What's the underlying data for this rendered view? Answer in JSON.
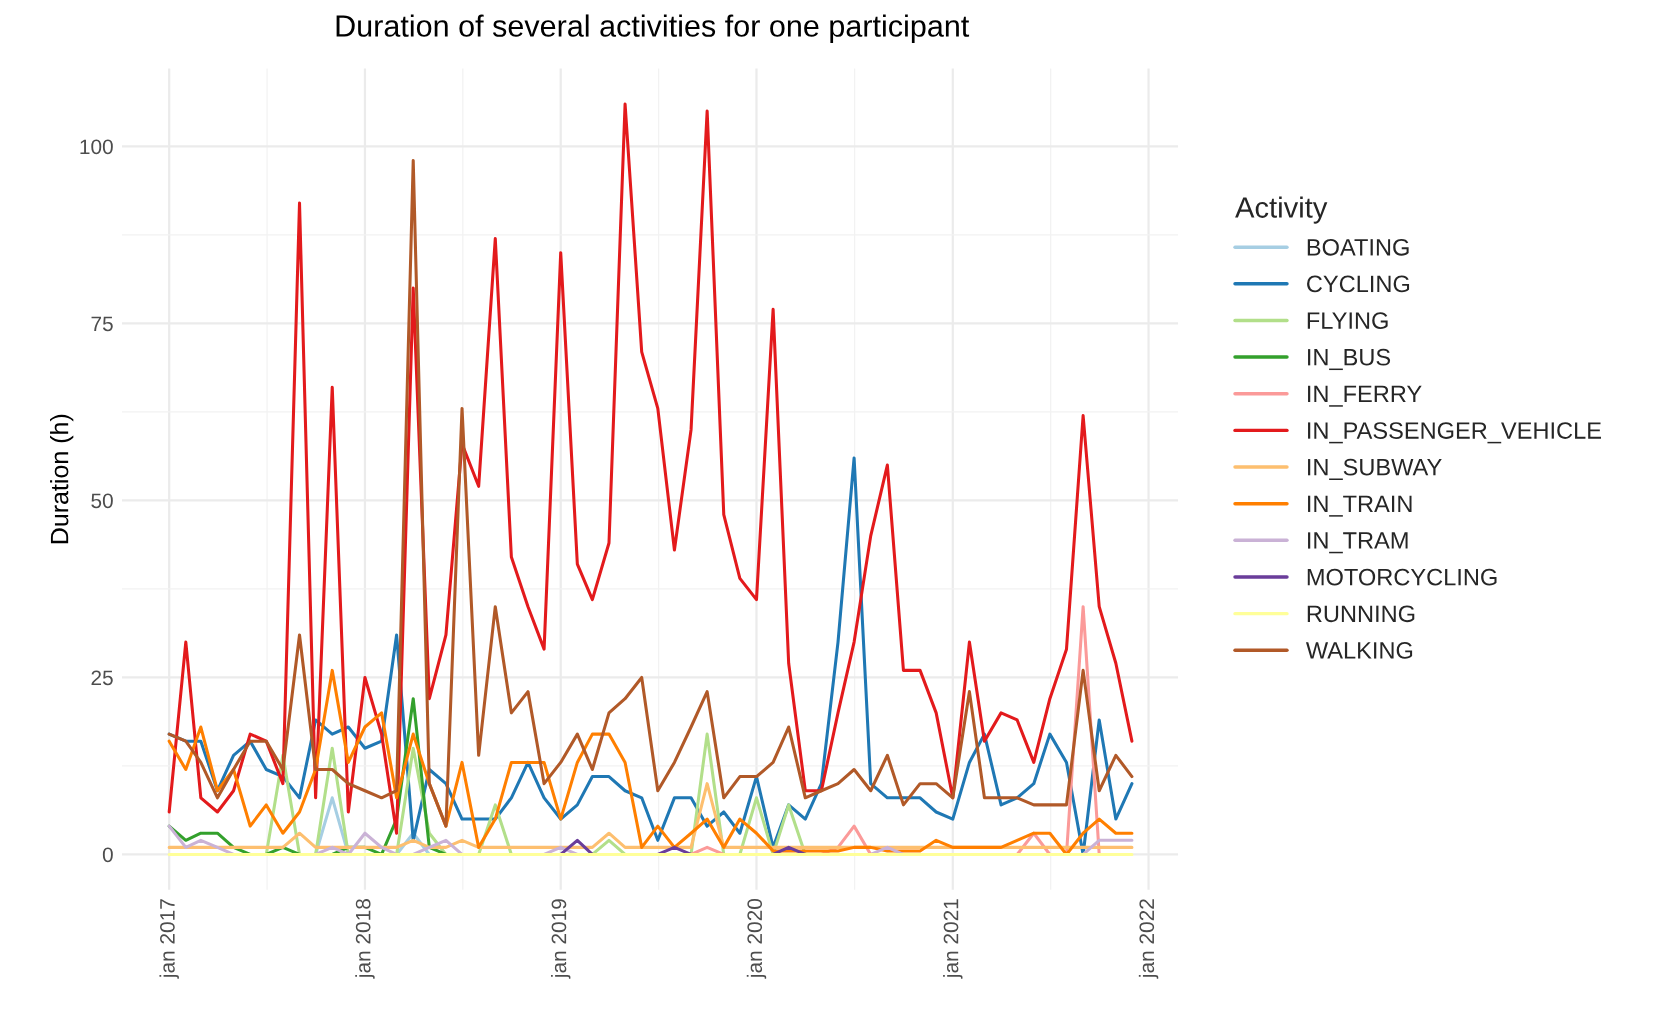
{
  "chart_data": {
    "type": "line",
    "title": "Duration of several activities for one participant",
    "ylabel": "Duration (h)",
    "legend_title": "Activity",
    "legend": "right",
    "grid": true,
    "marker": "none",
    "line_style": "solid",
    "x": [
      "2017-01",
      "2017-02",
      "2017-03",
      "2017-04",
      "2017-05",
      "2017-06",
      "2017-07",
      "2017-08",
      "2017-09",
      "2017-10",
      "2017-11",
      "2017-12",
      "2018-01",
      "2018-02",
      "2018-03",
      "2018-04",
      "2018-05",
      "2018-06",
      "2018-07",
      "2018-08",
      "2018-09",
      "2018-10",
      "2018-11",
      "2018-12",
      "2019-01",
      "2019-02",
      "2019-03",
      "2019-04",
      "2019-05",
      "2019-06",
      "2019-07",
      "2019-08",
      "2019-09",
      "2019-10",
      "2019-11",
      "2019-12",
      "2020-01",
      "2020-02",
      "2020-03",
      "2020-04",
      "2020-05",
      "2020-06",
      "2020-07",
      "2020-08",
      "2020-09",
      "2020-10",
      "2020-11",
      "2020-12",
      "2021-01",
      "2021-02",
      "2021-03",
      "2021-04",
      "2021-05",
      "2021-06",
      "2021-07",
      "2021-08",
      "2021-09",
      "2021-10",
      "2021-11",
      "2021-12"
    ],
    "xlim": [
      "2016-10-05",
      "2022-02-25"
    ],
    "xticks": [
      {
        "value": "2017-01-01",
        "label": "jan 2017"
      },
      {
        "value": "2018-01-01",
        "label": "jan 2018"
      },
      {
        "value": "2019-01-01",
        "label": "jan 2019"
      },
      {
        "value": "2020-01-01",
        "label": "jan 2020"
      },
      {
        "value": "2021-01-01",
        "label": "jan 2021"
      },
      {
        "value": "2022-01-01",
        "label": "jan 2022"
      }
    ],
    "ylim": [
      -5,
      111
    ],
    "yticks": [
      0,
      25,
      50,
      75,
      100
    ],
    "series": [
      {
        "name": "BOATING",
        "color": "#a6cee3",
        "values": [
          null,
          null,
          null,
          null,
          null,
          null,
          null,
          null,
          null,
          0,
          8,
          0,
          null,
          null,
          0,
          3,
          0,
          null,
          null,
          null,
          null,
          null,
          null,
          null,
          null,
          null,
          null,
          null,
          null,
          null,
          null,
          null,
          null,
          null,
          null,
          null,
          null,
          null,
          null,
          null,
          null,
          null,
          null,
          null,
          null,
          null,
          null,
          null,
          null,
          null,
          null,
          null,
          null,
          null,
          null,
          null,
          null,
          null,
          null,
          null
        ]
      },
      {
        "name": "CYCLING",
        "color": "#1f78b4",
        "values": [
          17,
          16,
          16,
          9,
          14,
          16,
          12,
          11,
          8,
          19,
          17,
          18,
          15,
          16,
          31,
          2,
          12,
          10,
          5,
          5,
          5,
          8,
          13,
          8,
          5,
          7,
          11,
          11,
          9,
          8,
          2,
          8,
          8,
          4,
          6,
          3,
          11,
          1,
          7,
          5,
          10,
          30,
          56,
          10,
          8,
          8,
          8,
          6,
          5,
          13,
          17,
          7,
          8,
          10,
          17,
          13,
          0,
          19,
          5,
          10
        ]
      },
      {
        "name": "FLYING",
        "color": "#b2df8a",
        "values": [
          null,
          null,
          null,
          null,
          null,
          null,
          0,
          14,
          0,
          0,
          15,
          0,
          null,
          null,
          0,
          15,
          3,
          0,
          null,
          0,
          7,
          0,
          null,
          null,
          null,
          null,
          0,
          2,
          0,
          null,
          null,
          null,
          0,
          17,
          0,
          0,
          8,
          0,
          7,
          0,
          null,
          null,
          null,
          null,
          null,
          null,
          null,
          null,
          null,
          null,
          null,
          null,
          null,
          null,
          null,
          null,
          null,
          null,
          null,
          null
        ]
      },
      {
        "name": "IN_BUS",
        "color": "#33a02c",
        "values": [
          4,
          2,
          3,
          3,
          1,
          0,
          0,
          1,
          0,
          null,
          0,
          1,
          1,
          0,
          5,
          22,
          1,
          0,
          null,
          null,
          null,
          null,
          null,
          null,
          null,
          null,
          null,
          null,
          null,
          null,
          null,
          null,
          null,
          null,
          null,
          null,
          null,
          null,
          null,
          null,
          null,
          null,
          null,
          null,
          null,
          null,
          null,
          null,
          null,
          null,
          null,
          null,
          null,
          null,
          null,
          null,
          null,
          null,
          null,
          null
        ]
      },
      {
        "name": "IN_FERRY",
        "color": "#fb9a99",
        "values": [
          null,
          null,
          null,
          null,
          null,
          null,
          null,
          null,
          null,
          null,
          null,
          null,
          null,
          null,
          null,
          null,
          null,
          null,
          null,
          null,
          null,
          null,
          null,
          null,
          null,
          null,
          null,
          null,
          null,
          null,
          null,
          null,
          0,
          1,
          0,
          null,
          null,
          null,
          null,
          null,
          0,
          1,
          4,
          0,
          null,
          null,
          null,
          null,
          null,
          null,
          null,
          null,
          0,
          3,
          0,
          0,
          35,
          0,
          null,
          null
        ]
      },
      {
        "name": "IN_PASSENGER_VEHICLE",
        "color": "#e31a1c",
        "values": [
          6,
          30,
          8,
          6,
          9,
          17,
          16,
          10,
          92,
          8,
          66,
          6,
          25,
          17,
          3,
          80,
          22,
          31,
          58,
          52,
          87,
          42,
          35,
          29,
          85,
          41,
          36,
          44,
          106,
          71,
          63,
          43,
          60,
          105,
          48,
          39,
          36,
          77,
          27,
          9,
          9,
          20,
          30,
          45,
          55,
          26,
          26,
          20,
          8,
          30,
          16,
          20,
          19,
          13,
          22,
          29,
          62,
          35,
          27,
          16
        ]
      },
      {
        "name": "IN_SUBWAY",
        "color": "#fdbf6f",
        "values": [
          1,
          1,
          1,
          1,
          1,
          1,
          1,
          1,
          3,
          1,
          1,
          1,
          1,
          1,
          1,
          2,
          1,
          1,
          2,
          1,
          1,
          1,
          1,
          1,
          1,
          1,
          1,
          3,
          1,
          1,
          1,
          1,
          1,
          10,
          1,
          1,
          1,
          1,
          1,
          1,
          1,
          1,
          1,
          1,
          1,
          1,
          1,
          1,
          1,
          1,
          1,
          1,
          1,
          1,
          1,
          1,
          1,
          1,
          1,
          1
        ]
      },
      {
        "name": "IN_TRAIN",
        "color": "#ff7f00",
        "values": [
          16,
          12,
          18,
          9,
          12,
          4,
          7,
          3,
          6,
          12,
          26,
          13,
          18,
          20,
          8,
          17,
          10,
          4,
          13,
          1,
          5,
          13,
          13,
          13,
          5,
          13,
          17,
          17,
          13,
          1,
          4,
          1,
          3,
          5,
          1,
          5,
          3,
          0.5,
          0.5,
          0.5,
          0.5,
          0.5,
          1,
          1,
          0.5,
          0.5,
          0.5,
          2,
          1,
          1,
          1,
          1,
          2,
          3,
          3,
          0,
          3,
          5,
          3,
          3
        ]
      },
      {
        "name": "IN_TRAM",
        "color": "#cab2d6",
        "values": [
          4,
          1,
          2,
          1,
          0,
          null,
          null,
          null,
          null,
          0,
          1,
          0,
          3,
          1,
          0,
          0,
          1,
          2,
          0,
          null,
          null,
          null,
          null,
          0,
          1,
          0,
          null,
          null,
          null,
          null,
          null,
          null,
          null,
          null,
          null,
          null,
          null,
          null,
          null,
          null,
          null,
          null,
          null,
          0,
          1,
          0,
          null,
          null,
          null,
          null,
          null,
          null,
          null,
          null,
          null,
          null,
          0,
          2,
          2,
          2
        ]
      },
      {
        "name": "MOTORCYCLING",
        "color": "#6a3d9a",
        "values": [
          null,
          null,
          null,
          null,
          null,
          null,
          null,
          null,
          null,
          null,
          null,
          null,
          null,
          null,
          null,
          null,
          null,
          null,
          null,
          null,
          null,
          null,
          null,
          null,
          0,
          2,
          0,
          null,
          null,
          null,
          0,
          1,
          0,
          null,
          null,
          null,
          null,
          0,
          1,
          0,
          null,
          null,
          null,
          null,
          null,
          null,
          null,
          null,
          null,
          null,
          null,
          null,
          null,
          null,
          null,
          null,
          null,
          null,
          null,
          null
        ]
      },
      {
        "name": "RUNNING",
        "color": "#ffff99",
        "values": [
          0,
          0,
          0,
          0,
          0,
          0,
          0,
          0,
          0,
          0,
          0,
          0,
          0,
          0,
          0,
          0,
          0,
          0,
          0,
          0,
          0,
          0,
          0,
          0,
          0,
          0,
          0,
          0,
          0,
          0,
          0,
          0,
          0,
          0,
          0,
          0,
          0,
          0,
          0,
          0,
          0,
          0,
          0,
          0,
          0,
          0,
          0,
          0,
          0,
          0,
          0,
          0,
          0,
          0,
          0,
          0,
          0,
          0,
          0,
          0
        ]
      },
      {
        "name": "WALKING",
        "color": "#b15928",
        "values": [
          17,
          16,
          13,
          8,
          12,
          16,
          16,
          12,
          31,
          12,
          12,
          10,
          9,
          8,
          9,
          98,
          10,
          4,
          63,
          14,
          35,
          20,
          23,
          10,
          13,
          17,
          12,
          20,
          22,
          25,
          9,
          13,
          18,
          23,
          8,
          11,
          11,
          13,
          18,
          8,
          9,
          10,
          12,
          9,
          14,
          7,
          10,
          10,
          8,
          23,
          8,
          8,
          8,
          7,
          7,
          7,
          26,
          9,
          14,
          11
        ]
      }
    ]
  }
}
